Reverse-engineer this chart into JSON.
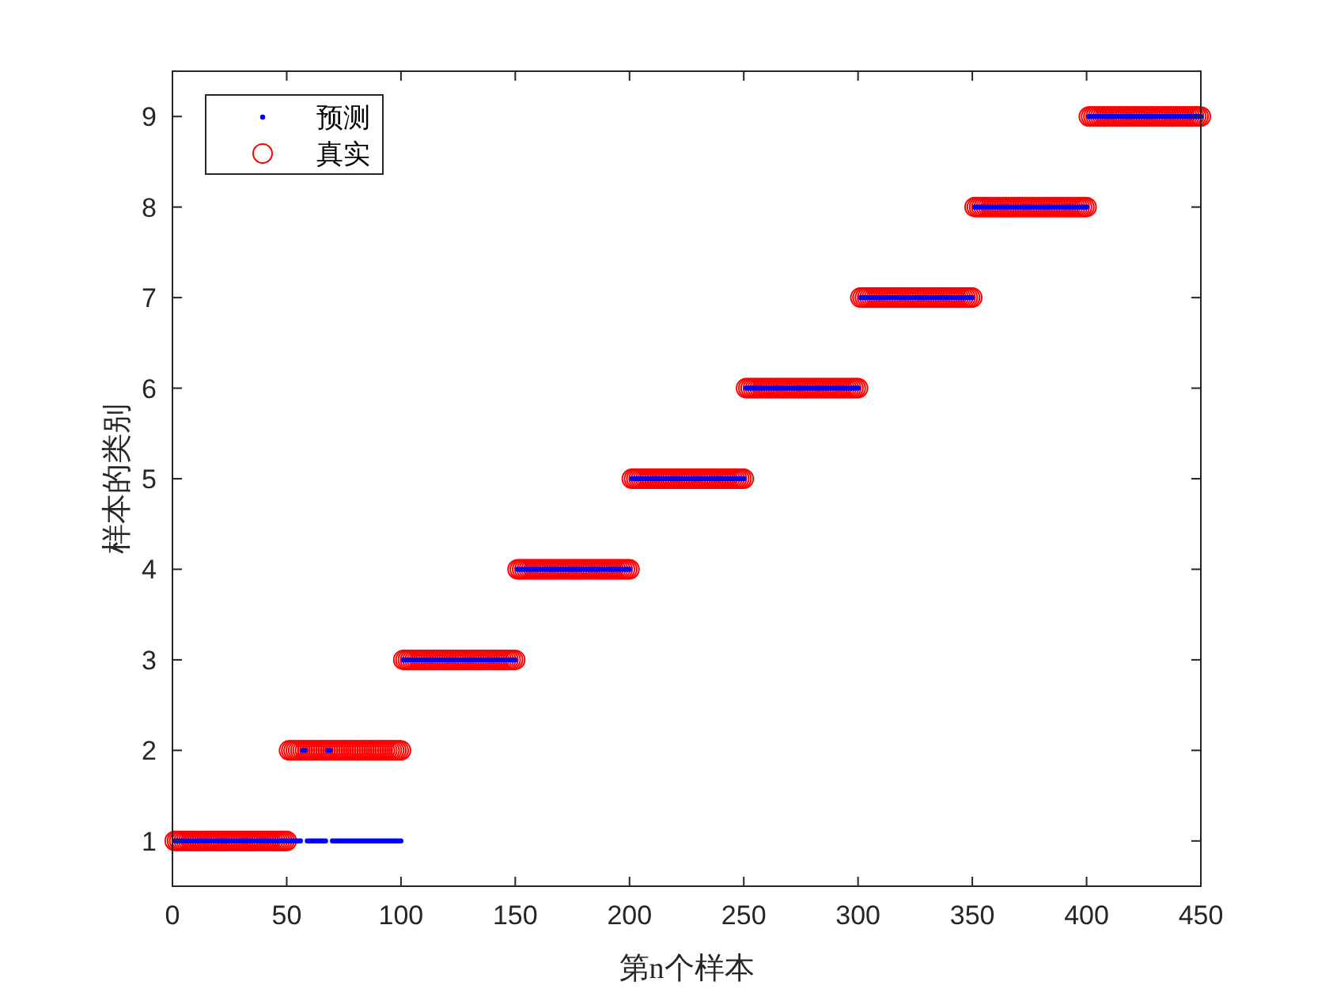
{
  "chart_data": {
    "type": "scatter",
    "xlabel": "第n个样本",
    "ylabel": "样本的类别",
    "xlim": [
      0,
      450
    ],
    "ylim": [
      0.5,
      9.5
    ],
    "xticks": [
      0,
      50,
      100,
      150,
      200,
      250,
      300,
      350,
      400,
      450
    ],
    "yticks": [
      1,
      2,
      3,
      4,
      5,
      6,
      7,
      8,
      9
    ],
    "grid": false,
    "legend": "top left",
    "x": [
      1,
      2,
      3,
      4,
      5,
      6,
      7,
      8,
      9,
      10,
      11,
      12,
      13,
      14,
      15,
      16,
      17,
      18,
      19,
      20,
      21,
      22,
      23,
      24,
      25,
      26,
      27,
      28,
      29,
      30,
      31,
      32,
      33,
      34,
      35,
      36,
      37,
      38,
      39,
      40,
      41,
      42,
      43,
      44,
      45,
      46,
      47,
      48,
      49,
      50,
      51,
      52,
      53,
      54,
      55,
      56,
      57,
      58,
      59,
      60,
      61,
      62,
      63,
      64,
      65,
      66,
      67,
      68,
      69,
      70,
      71,
      72,
      73,
      74,
      75,
      76,
      77,
      78,
      79,
      80,
      81,
      82,
      83,
      84,
      85,
      86,
      87,
      88,
      89,
      90,
      91,
      92,
      93,
      94,
      95,
      96,
      97,
      98,
      99,
      100,
      101,
      102,
      103,
      104,
      105,
      106,
      107,
      108,
      109,
      110,
      111,
      112,
      113,
      114,
      115,
      116,
      117,
      118,
      119,
      120,
      121,
      122,
      123,
      124,
      125,
      126,
      127,
      128,
      129,
      130,
      131,
      132,
      133,
      134,
      135,
      136,
      137,
      138,
      139,
      140,
      141,
      142,
      143,
      144,
      145,
      146,
      147,
      148,
      149,
      150,
      151,
      152,
      153,
      154,
      155,
      156,
      157,
      158,
      159,
      160,
      161,
      162,
      163,
      164,
      165,
      166,
      167,
      168,
      169,
      170,
      171,
      172,
      173,
      174,
      175,
      176,
      177,
      178,
      179,
      180,
      181,
      182,
      183,
      184,
      185,
      186,
      187,
      188,
      189,
      190,
      191,
      192,
      193,
      194,
      195,
      196,
      197,
      198,
      199,
      200,
      201,
      202,
      203,
      204,
      205,
      206,
      207,
      208,
      209,
      210,
      211,
      212,
      213,
      214,
      215,
      216,
      217,
      218,
      219,
      220,
      221,
      222,
      223,
      224,
      225,
      226,
      227,
      228,
      229,
      230,
      231,
      232,
      233,
      234,
      235,
      236,
      237,
      238,
      239,
      240,
      241,
      242,
      243,
      244,
      245,
      246,
      247,
      248,
      249,
      250,
      251,
      252,
      253,
      254,
      255,
      256,
      257,
      258,
      259,
      260,
      261,
      262,
      263,
      264,
      265,
      266,
      267,
      268,
      269,
      270,
      271,
      272,
      273,
      274,
      275,
      276,
      277,
      278,
      279,
      280,
      281,
      282,
      283,
      284,
      285,
      286,
      287,
      288,
      289,
      290,
      291,
      292,
      293,
      294,
      295,
      296,
      297,
      298,
      299,
      300,
      301,
      302,
      303,
      304,
      305,
      306,
      307,
      308,
      309,
      310,
      311,
      312,
      313,
      314,
      315,
      316,
      317,
      318,
      319,
      320,
      321,
      322,
      323,
      324,
      325,
      326,
      327,
      328,
      329,
      330,
      331,
      332,
      333,
      334,
      335,
      336,
      337,
      338,
      339,
      340,
      341,
      342,
      343,
      344,
      345,
      346,
      347,
      348,
      349,
      350,
      351,
      352,
      353,
      354,
      355,
      356,
      357,
      358,
      359,
      360,
      361,
      362,
      363,
      364,
      365,
      366,
      367,
      368,
      369,
      370,
      371,
      372,
      373,
      374,
      375,
      376,
      377,
      378,
      379,
      380,
      381,
      382,
      383,
      384,
      385,
      386,
      387,
      388,
      389,
      390,
      391,
      392,
      393,
      394,
      395,
      396,
      397,
      398,
      399,
      400,
      401,
      402,
      403,
      404,
      405,
      406,
      407,
      408,
      409,
      410,
      411,
      412,
      413,
      414,
      415,
      416,
      417,
      418,
      419,
      420,
      421,
      422,
      423,
      424,
      425,
      426,
      427,
      428,
      429,
      430,
      431,
      432,
      433,
      434,
      435,
      436,
      437,
      438,
      439,
      440,
      441,
      442,
      443,
      444,
      445,
      446,
      447,
      448,
      449,
      450
    ],
    "series": [
      {
        "name": "预测",
        "color": "#0000ff",
        "marker": "circle",
        "values": [
          1,
          1,
          1,
          1,
          1,
          1,
          1,
          1,
          1,
          1,
          1,
          1,
          1,
          1,
          1,
          1,
          1,
          1,
          1,
          1,
          1,
          1,
          1,
          1,
          1,
          1,
          1,
          1,
          1,
          1,
          1,
          1,
          1,
          1,
          1,
          1,
          1,
          1,
          1,
          1,
          1,
          1,
          1,
          1,
          1,
          1,
          1,
          1,
          1,
          1,
          1,
          1,
          1,
          1,
          1,
          1,
          2,
          2,
          1,
          1,
          1,
          1,
          1,
          1,
          1,
          1,
          1,
          2,
          2,
          1,
          1,
          1,
          1,
          1,
          1,
          1,
          1,
          1,
          1,
          1,
          1,
          1,
          1,
          1,
          1,
          1,
          1,
          1,
          1,
          1,
          1,
          1,
          1,
          1,
          1,
          1,
          1,
          1,
          1,
          1,
          3,
          3,
          3,
          3,
          3,
          3,
          3,
          3,
          3,
          3,
          3,
          3,
          3,
          3,
          3,
          3,
          3,
          3,
          3,
          3,
          3,
          3,
          3,
          3,
          3,
          3,
          3,
          3,
          3,
          3,
          3,
          3,
          3,
          3,
          3,
          3,
          3,
          3,
          3,
          3,
          3,
          3,
          3,
          3,
          3,
          3,
          3,
          3,
          3,
          3,
          4,
          4,
          4,
          4,
          4,
          4,
          4,
          4,
          4,
          4,
          4,
          4,
          4,
          4,
          4,
          4,
          4,
          4,
          4,
          4,
          4,
          4,
          4,
          4,
          4,
          4,
          4,
          4,
          4,
          4,
          4,
          4,
          4,
          4,
          4,
          4,
          4,
          4,
          4,
          4,
          4,
          4,
          4,
          4,
          4,
          4,
          4,
          4,
          4,
          4,
          5,
          5,
          5,
          5,
          5,
          5,
          5,
          5,
          5,
          5,
          5,
          5,
          5,
          5,
          5,
          5,
          5,
          5,
          5,
          5,
          5,
          5,
          5,
          5,
          5,
          5,
          5,
          5,
          5,
          5,
          5,
          5,
          5,
          5,
          5,
          5,
          5,
          5,
          5,
          5,
          5,
          5,
          5,
          5,
          5,
          5,
          5,
          5,
          5,
          5,
          6,
          6,
          6,
          6,
          6,
          6,
          6,
          6,
          6,
          6,
          6,
          6,
          6,
          6,
          6,
          6,
          6,
          6,
          6,
          6,
          6,
          6,
          6,
          6,
          6,
          6,
          6,
          6,
          6,
          6,
          6,
          6,
          6,
          6,
          6,
          6,
          6,
          6,
          6,
          6,
          6,
          6,
          6,
          6,
          6,
          6,
          6,
          6,
          6,
          6,
          7,
          7,
          7,
          7,
          7,
          7,
          7,
          7,
          7,
          7,
          7,
          7,
          7,
          7,
          7,
          7,
          7,
          7,
          7,
          7,
          7,
          7,
          7,
          7,
          7,
          7,
          7,
          7,
          7,
          7,
          7,
          7,
          7,
          7,
          7,
          7,
          7,
          7,
          7,
          7,
          7,
          7,
          7,
          7,
          7,
          7,
          7,
          7,
          7,
          7,
          8,
          8,
          8,
          8,
          8,
          8,
          8,
          8,
          8,
          8,
          8,
          8,
          8,
          8,
          8,
          8,
          8,
          8,
          8,
          8,
          8,
          8,
          8,
          8,
          8,
          8,
          8,
          8,
          8,
          8,
          8,
          8,
          8,
          8,
          8,
          8,
          8,
          8,
          8,
          8,
          8,
          8,
          8,
          8,
          8,
          8,
          8,
          8,
          8,
          8,
          9,
          9,
          9,
          9,
          9,
          9,
          9,
          9,
          9,
          9,
          9,
          9,
          9,
          9,
          9,
          9,
          9,
          9,
          9,
          9,
          9,
          9,
          9,
          9,
          9,
          9,
          9,
          9,
          9,
          9,
          9,
          9,
          9,
          9,
          9,
          9,
          9,
          9,
          9,
          9,
          9,
          9,
          9,
          9,
          9,
          9,
          9,
          9,
          9,
          9
        ]
      },
      {
        "name": "真实",
        "color": "#ff0000",
        "marker": "circle",
        "values": [
          1,
          1,
          1,
          1,
          1,
          1,
          1,
          1,
          1,
          1,
          1,
          1,
          1,
          1,
          1,
          1,
          1,
          1,
          1,
          1,
          1,
          1,
          1,
          1,
          1,
          1,
          1,
          1,
          1,
          1,
          1,
          1,
          1,
          1,
          1,
          1,
          1,
          1,
          1,
          1,
          1,
          1,
          1,
          1,
          1,
          1,
          1,
          1,
          1,
          1,
          2,
          2,
          2,
          2,
          2,
          2,
          2,
          2,
          2,
          2,
          2,
          2,
          2,
          2,
          2,
          2,
          2,
          2,
          2,
          2,
          2,
          2,
          2,
          2,
          2,
          2,
          2,
          2,
          2,
          2,
          2,
          2,
          2,
          2,
          2,
          2,
          2,
          2,
          2,
          2,
          2,
          2,
          2,
          2,
          2,
          2,
          2,
          2,
          2,
          2,
          3,
          3,
          3,
          3,
          3,
          3,
          3,
          3,
          3,
          3,
          3,
          3,
          3,
          3,
          3,
          3,
          3,
          3,
          3,
          3,
          3,
          3,
          3,
          3,
          3,
          3,
          3,
          3,
          3,
          3,
          3,
          3,
          3,
          3,
          3,
          3,
          3,
          3,
          3,
          3,
          3,
          3,
          3,
          3,
          3,
          3,
          3,
          3,
          3,
          3,
          4,
          4,
          4,
          4,
          4,
          4,
          4,
          4,
          4,
          4,
          4,
          4,
          4,
          4,
          4,
          4,
          4,
          4,
          4,
          4,
          4,
          4,
          4,
          4,
          4,
          4,
          4,
          4,
          4,
          4,
          4,
          4,
          4,
          4,
          4,
          4,
          4,
          4,
          4,
          4,
          4,
          4,
          4,
          4,
          4,
          4,
          4,
          4,
          4,
          4,
          5,
          5,
          5,
          5,
          5,
          5,
          5,
          5,
          5,
          5,
          5,
          5,
          5,
          5,
          5,
          5,
          5,
          5,
          5,
          5,
          5,
          5,
          5,
          5,
          5,
          5,
          5,
          5,
          5,
          5,
          5,
          5,
          5,
          5,
          5,
          5,
          5,
          5,
          5,
          5,
          5,
          5,
          5,
          5,
          5,
          5,
          5,
          5,
          5,
          5,
          6,
          6,
          6,
          6,
          6,
          6,
          6,
          6,
          6,
          6,
          6,
          6,
          6,
          6,
          6,
          6,
          6,
          6,
          6,
          6,
          6,
          6,
          6,
          6,
          6,
          6,
          6,
          6,
          6,
          6,
          6,
          6,
          6,
          6,
          6,
          6,
          6,
          6,
          6,
          6,
          6,
          6,
          6,
          6,
          6,
          6,
          6,
          6,
          6,
          6,
          7,
          7,
          7,
          7,
          7,
          7,
          7,
          7,
          7,
          7,
          7,
          7,
          7,
          7,
          7,
          7,
          7,
          7,
          7,
          7,
          7,
          7,
          7,
          7,
          7,
          7,
          7,
          7,
          7,
          7,
          7,
          7,
          7,
          7,
          7,
          7,
          7,
          7,
          7,
          7,
          7,
          7,
          7,
          7,
          7,
          7,
          7,
          7,
          7,
          7,
          8,
          8,
          8,
          8,
          8,
          8,
          8,
          8,
          8,
          8,
          8,
          8,
          8,
          8,
          8,
          8,
          8,
          8,
          8,
          8,
          8,
          8,
          8,
          8,
          8,
          8,
          8,
          8,
          8,
          8,
          8,
          8,
          8,
          8,
          8,
          8,
          8,
          8,
          8,
          8,
          8,
          8,
          8,
          8,
          8,
          8,
          8,
          8,
          8,
          8,
          9,
          9,
          9,
          9,
          9,
          9,
          9,
          9,
          9,
          9,
          9,
          9,
          9,
          9,
          9,
          9,
          9,
          9,
          9,
          9,
          9,
          9,
          9,
          9,
          9,
          9,
          9,
          9,
          9,
          9,
          9,
          9,
          9,
          9,
          9,
          9,
          9,
          9,
          9,
          9,
          9,
          9,
          9,
          9,
          9,
          9,
          9,
          9,
          9,
          9
        ]
      }
    ]
  }
}
